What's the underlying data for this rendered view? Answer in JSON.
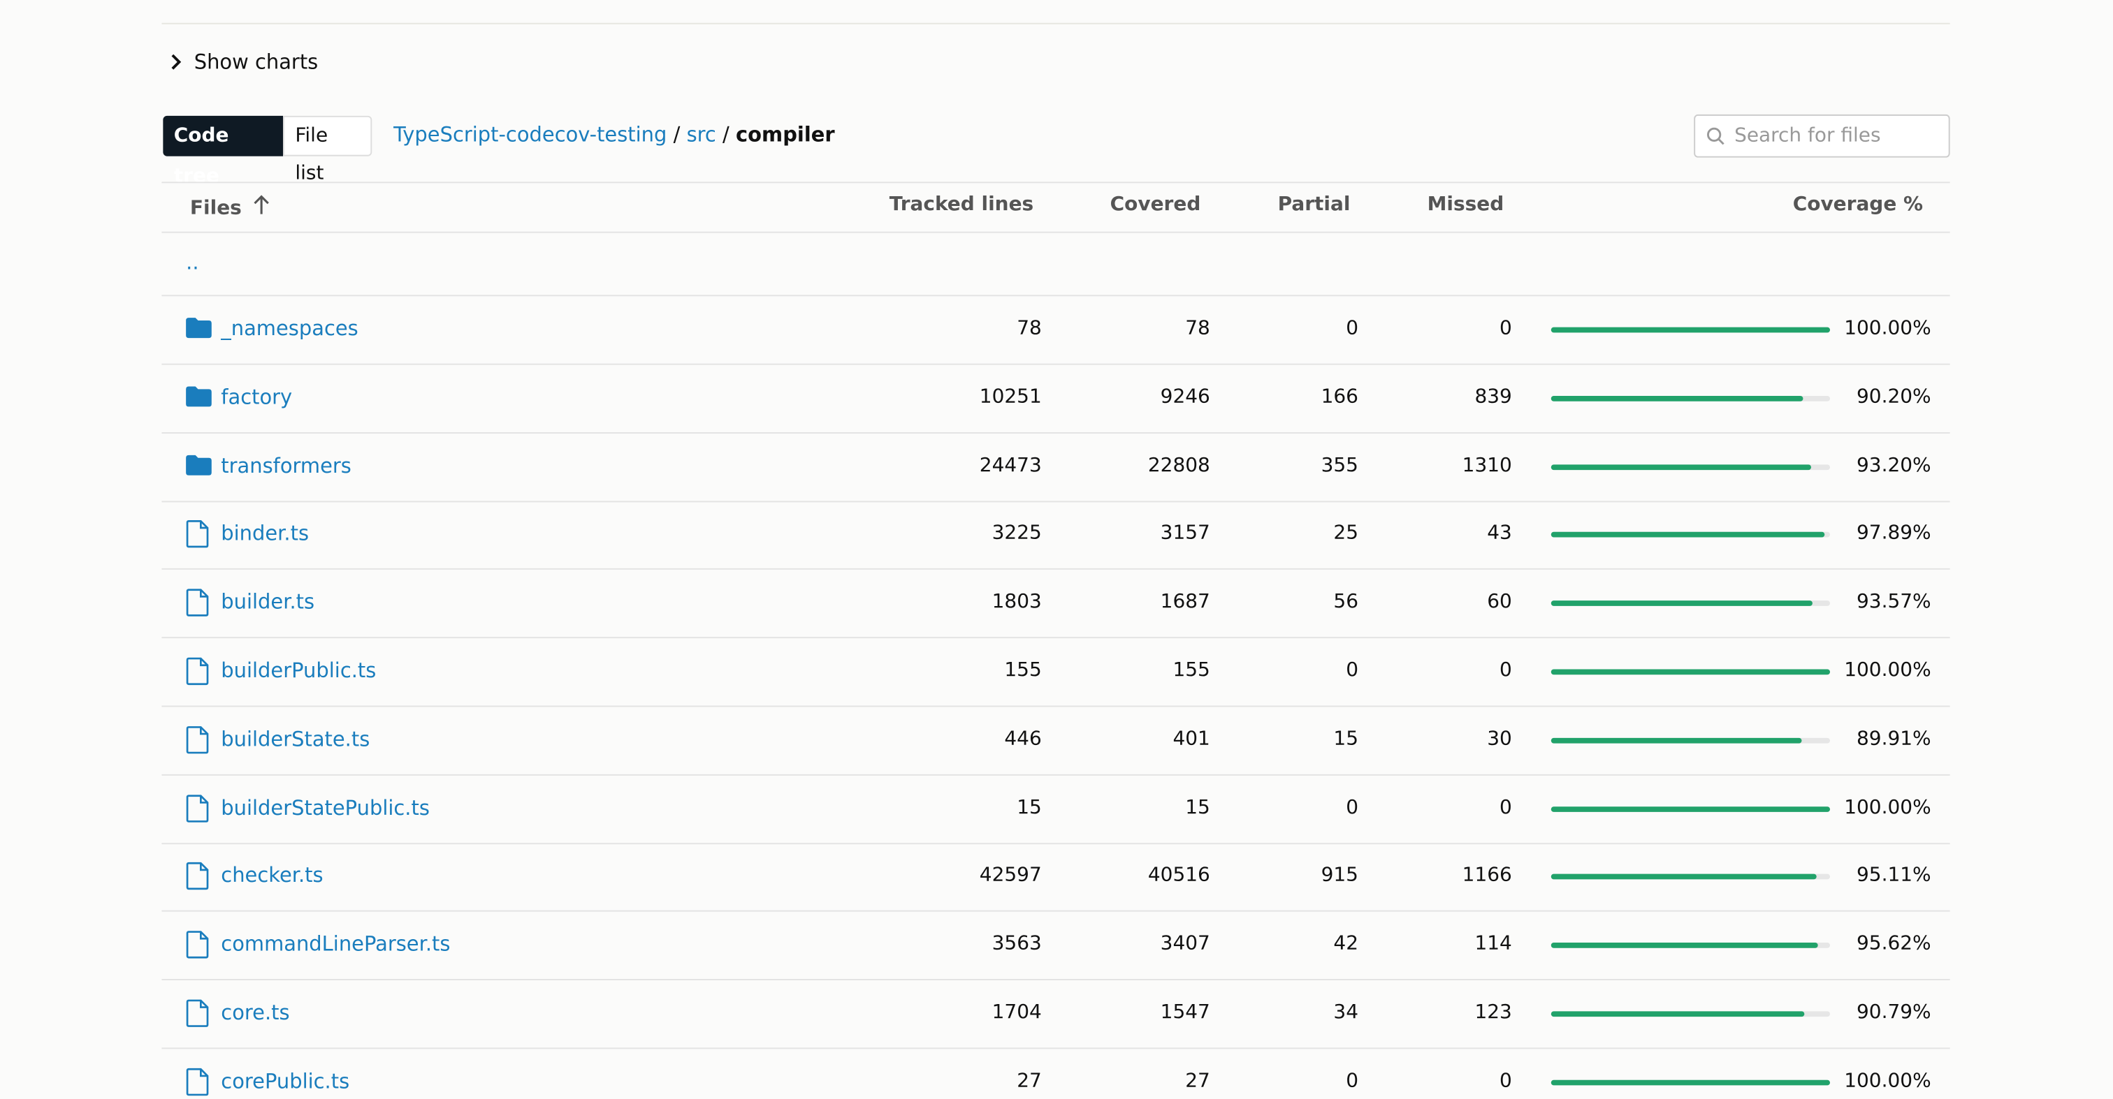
{
  "show_charts": "Show charts",
  "toggle": [
    "Code tree",
    "File list"
  ],
  "breadcrumb": [
    "TypeScript-codecov-testing",
    "src",
    "compiler"
  ],
  "breadcrumb_separator": "/",
  "search_placeholder": "Search for files",
  "table": {
    "headers": [
      "Files",
      "Tracked lines",
      "Covered",
      "Partial",
      "Missed",
      "Coverage %"
    ],
    "parent_link": "..",
    "rows": [
      {
        "icon": "folder",
        "name": "_namespaces",
        "tracked": 78,
        "covered": 78,
        "partial": 0,
        "missed": 0,
        "coverage": 100.0,
        "coverage_label": "100.00%"
      },
      {
        "icon": "folder",
        "name": "factory",
        "tracked": 10251,
        "covered": 9246,
        "partial": 166,
        "missed": 839,
        "coverage": 90.2,
        "coverage_label": "90.20%"
      },
      {
        "icon": "folder",
        "name": "transformers",
        "tracked": 24473,
        "covered": 22808,
        "partial": 355,
        "missed": 1310,
        "coverage": 93.2,
        "coverage_label": "93.20%"
      },
      {
        "icon": "file",
        "name": "binder.ts",
        "tracked": 3225,
        "covered": 3157,
        "partial": 25,
        "missed": 43,
        "coverage": 97.89,
        "coverage_label": "97.89%"
      },
      {
        "icon": "file",
        "name": "builder.ts",
        "tracked": 1803,
        "covered": 1687,
        "partial": 56,
        "missed": 60,
        "coverage": 93.57,
        "coverage_label": "93.57%"
      },
      {
        "icon": "file",
        "name": "builderPublic.ts",
        "tracked": 155,
        "covered": 155,
        "partial": 0,
        "missed": 0,
        "coverage": 100.0,
        "coverage_label": "100.00%"
      },
      {
        "icon": "file",
        "name": "builderState.ts",
        "tracked": 446,
        "covered": 401,
        "partial": 15,
        "missed": 30,
        "coverage": 89.91,
        "coverage_label": "89.91%"
      },
      {
        "icon": "file",
        "name": "builderStatePublic.ts",
        "tracked": 15,
        "covered": 15,
        "partial": 0,
        "missed": 0,
        "coverage": 100.0,
        "coverage_label": "100.00%"
      },
      {
        "icon": "file",
        "name": "checker.ts",
        "tracked": 42597,
        "covered": 40516,
        "partial": 915,
        "missed": 1166,
        "coverage": 95.11,
        "coverage_label": "95.11%"
      },
      {
        "icon": "file",
        "name": "commandLineParser.ts",
        "tracked": 3563,
        "covered": 3407,
        "partial": 42,
        "missed": 114,
        "coverage": 95.62,
        "coverage_label": "95.62%"
      },
      {
        "icon": "file",
        "name": "core.ts",
        "tracked": 1704,
        "covered": 1547,
        "partial": 34,
        "missed": 123,
        "coverage": 90.79,
        "coverage_label": "90.79%"
      },
      {
        "icon": "file",
        "name": "corePublic.ts",
        "tracked": 27,
        "covered": 27,
        "partial": 0,
        "missed": 0,
        "coverage": 100.0,
        "coverage_label": "100.00%"
      }
    ]
  }
}
